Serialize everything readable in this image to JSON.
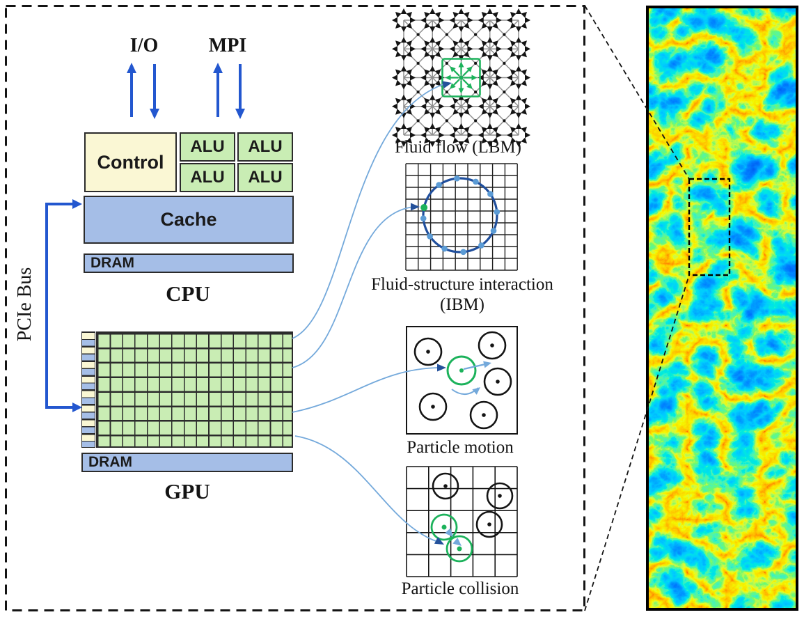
{
  "labels": {
    "io": "I/O",
    "mpi": "MPI",
    "control": "Control",
    "alu": "ALU",
    "cache": "Cache",
    "dram": "DRAM",
    "cpu": "CPU",
    "gpu": "GPU",
    "pcie_bus": "PCIe Bus"
  },
  "captions": {
    "lbm": "Fluid flow (LBM)",
    "ibm_line1": "Fluid-structure interaction",
    "ibm_line2": "(IBM)",
    "motion": "Particle motion",
    "collision": "Particle collision"
  },
  "diagrams": {
    "lbm": {
      "cols": 4,
      "rows": 4,
      "directions_per_node": 8,
      "highlighted_node": "center"
    },
    "ibm": {
      "cols": 9,
      "rows": 9,
      "boundary_markers": 11,
      "highlighted_markers": 1
    },
    "motion": {
      "black_particles": 5,
      "green_particles": 1
    },
    "collision": {
      "cols": 5,
      "rows": 5,
      "black_particles": 3,
      "green_particles": 2
    }
  },
  "gpu_layout": {
    "sm_rows": 8,
    "core_columns": 16
  },
  "cpu_layout": {
    "alu_count": 4
  },
  "colors": {
    "ink": "#141414",
    "box_border": "#2b2b2b",
    "control_fill": "#FAF7D4",
    "alu_fill": "#C9EDB4",
    "cache_fill": "#A5BEE7",
    "arrow_blue": "#2357CF",
    "highlight_green": "#1CB25B",
    "connector_line": "#74A9DB",
    "connector_head": "#24519B",
    "ibm_circle": "#1F4E9C",
    "ibm_marker": "#5B9BD5",
    "lbm_grid_gray": "#8F8F8F",
    "turbulence_palette": [
      "#FF2000",
      "#FFD000",
      "#20E040",
      "#00D8C0",
      "#0060FF",
      "#0030CC"
    ]
  }
}
